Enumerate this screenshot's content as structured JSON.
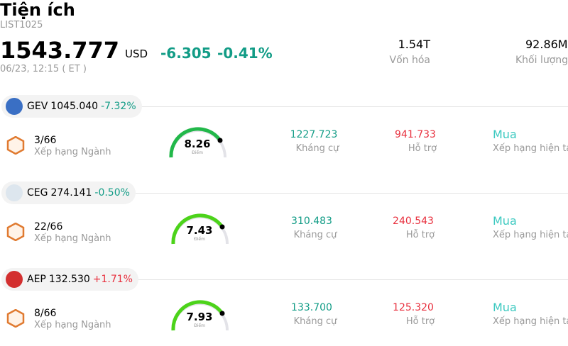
{
  "header": {
    "title": "Tiện ích",
    "code": "LIST1025",
    "price": "1543.777",
    "currency": "USD",
    "change": "-6.305",
    "change_percent": "-0.41%",
    "timestamp": "06/23, 12:15 ( ET )",
    "stats": [
      {
        "value": "1.54T",
        "label": "Vốn hóa"
      },
      {
        "value": "92.86M",
        "label": "Khối lượng"
      }
    ]
  },
  "stocks": [
    {
      "ticker": "GEV",
      "price": "1045.040",
      "change_percent": "-7.32%",
      "rank": "3/66",
      "rank_label": "Xếp hạng Ngành",
      "score": "8.26",
      "score_label": "Điểm",
      "resistance": "1227.723",
      "resistance_label": "Kháng cự",
      "support": "941.733",
      "support_label": "Hỗ trợ",
      "rating": "Mua",
      "rating_label": "Xếp hạng hiện tại"
    },
    {
      "ticker": "CEG",
      "price": "274.141",
      "change_percent": "-0.50%",
      "rank": "22/66",
      "rank_label": "Xếp hạng Ngành",
      "score": "7.43",
      "score_label": "Điểm",
      "resistance": "310.483",
      "resistance_label": "Kháng cự",
      "support": "240.543",
      "support_label": "Hỗ trợ",
      "rating": "Mua",
      "rating_label": "Xếp hạng hiện tại"
    },
    {
      "ticker": "AEP",
      "price": "132.530",
      "change_percent": "+1.71%",
      "rank": "8/66",
      "rank_label": "Xếp hạng Ngành",
      "score": "7.93",
      "score_label": "Điểm",
      "resistance": "133.700",
      "resistance_label": "Kháng cự",
      "support": "125.320",
      "support_label": "Hỗ trợ",
      "rating": "Mua",
      "rating_label": "Xếp hạng hiện tại"
    }
  ]
}
